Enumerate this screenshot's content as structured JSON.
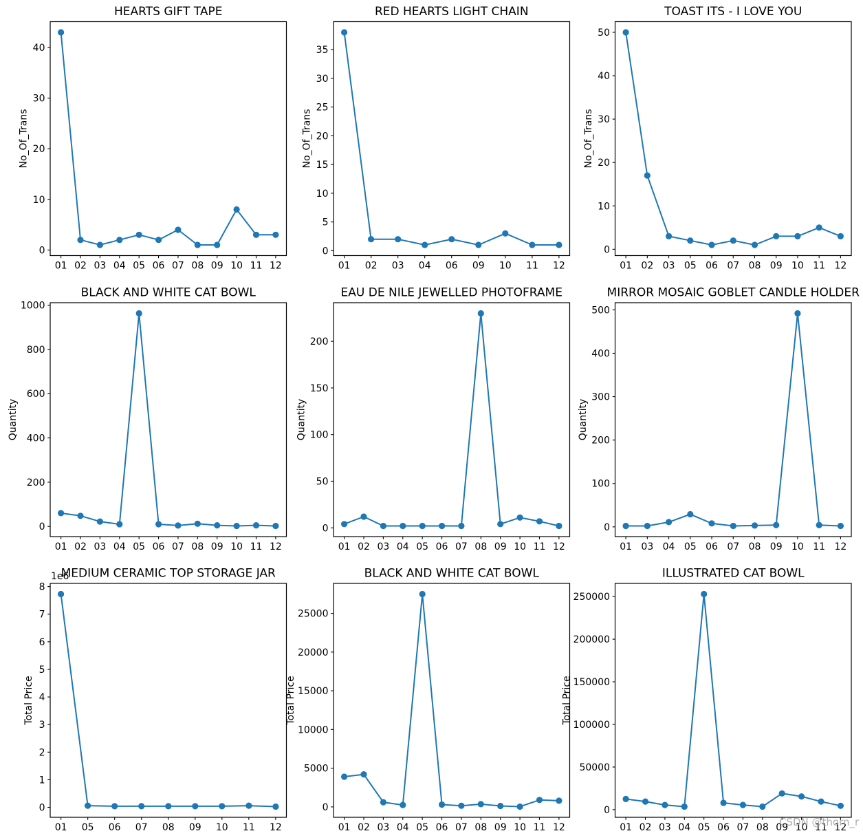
{
  "figure": {
    "background": "#ffffff",
    "line_color": "#1f77b4",
    "axes_color": "#000000",
    "watermark": "CSDN @thorn_r"
  },
  "chart_data": [
    {
      "type": "line",
      "title": "HEARTS GIFT TAPE",
      "xlabel": "",
      "ylabel": "No_Of_Trans",
      "x": [
        "01",
        "02",
        "03",
        "04",
        "05",
        "06",
        "07",
        "08",
        "09",
        "10",
        "11",
        "12"
      ],
      "values": [
        43,
        2,
        1,
        2,
        3,
        2,
        4,
        1,
        1,
        8,
        3,
        3
      ],
      "yticks": [
        0,
        10,
        20,
        30,
        40
      ],
      "ytick_labels": [
        "0",
        "10",
        "20",
        "30",
        "40"
      ],
      "offset_text": "",
      "grid": false,
      "legend": null
    },
    {
      "type": "line",
      "title": "RED HEARTS LIGHT CHAIN",
      "xlabel": "",
      "ylabel": "No_Of_Trans",
      "x": [
        "01",
        "02",
        "03",
        "04",
        "06",
        "09",
        "10",
        "11",
        "12"
      ],
      "values": [
        38,
        2,
        2,
        1,
        2,
        1,
        3,
        1,
        1
      ],
      "yticks": [
        0,
        5,
        10,
        15,
        20,
        25,
        30,
        35
      ],
      "ytick_labels": [
        "0",
        "5",
        "10",
        "15",
        "20",
        "25",
        "30",
        "35"
      ],
      "offset_text": "",
      "grid": false,
      "legend": null
    },
    {
      "type": "line",
      "title": "TOAST ITS - I LOVE YOU",
      "xlabel": "",
      "ylabel": "No_Of_Trans",
      "x": [
        "01",
        "02",
        "03",
        "05",
        "06",
        "07",
        "08",
        "09",
        "10",
        "11",
        "12"
      ],
      "values": [
        50,
        17,
        3,
        2,
        1,
        2,
        1,
        3,
        3,
        5,
        3
      ],
      "yticks": [
        0,
        10,
        20,
        30,
        40,
        50
      ],
      "ytick_labels": [
        "0",
        "10",
        "20",
        "30",
        "40",
        "50"
      ],
      "offset_text": "",
      "grid": false,
      "legend": null
    },
    {
      "type": "line",
      "title": "BLACK AND WHITE CAT BOWL",
      "xlabel": "",
      "ylabel": "Quantity",
      "x": [
        "01",
        "02",
        "03",
        "04",
        "05",
        "06",
        "07",
        "08",
        "09",
        "10",
        "11",
        "12"
      ],
      "values": [
        60,
        48,
        22,
        10,
        963,
        10,
        4,
        12,
        5,
        2,
        5,
        2
      ],
      "yticks": [
        0,
        200,
        400,
        600,
        800,
        1000
      ],
      "ytick_labels": [
        "0",
        "200",
        "400",
        "600",
        "800",
        "1000"
      ],
      "offset_text": "",
      "grid": false,
      "legend": null
    },
    {
      "type": "line",
      "title": "EAU DE NILE JEWELLED PHOTOFRAME",
      "xlabel": "",
      "ylabel": "Quantity",
      "x": [
        "01",
        "02",
        "03",
        "04",
        "05",
        "06",
        "07",
        "08",
        "09",
        "10",
        "11",
        "12"
      ],
      "values": [
        4,
        12,
        2,
        2,
        2,
        2,
        2,
        230,
        4,
        11,
        7,
        2
      ],
      "yticks": [
        0,
        50,
        100,
        150,
        200
      ],
      "ytick_labels": [
        "0",
        "50",
        "100",
        "150",
        "200"
      ],
      "offset_text": "",
      "grid": false,
      "legend": null
    },
    {
      "type": "line",
      "title": "MIRROR MOSAIC GOBLET CANDLE HOLDER",
      "xlabel": "",
      "ylabel": "Quantity",
      "x": [
        "01",
        "03",
        "04",
        "05",
        "06",
        "07",
        "08",
        "09",
        "10",
        "11",
        "12"
      ],
      "values": [
        2,
        2,
        11,
        29,
        8,
        2,
        3,
        4,
        492,
        4,
        2
      ],
      "yticks": [
        0,
        100,
        200,
        300,
        400,
        500
      ],
      "ytick_labels": [
        "0",
        "100",
        "200",
        "300",
        "400",
        "500"
      ],
      "offset_text": "",
      "grid": false,
      "legend": null
    },
    {
      "type": "line",
      "title": "MEDIUM CERAMIC TOP STORAGE JAR",
      "xlabel": "",
      "ylabel": "Total Price",
      "x": [
        "01",
        "05",
        "06",
        "07",
        "08",
        "09",
        "10",
        "11",
        "12"
      ],
      "values": [
        7730000,
        60000,
        40000,
        40000,
        40000,
        40000,
        40000,
        60000,
        25000
      ],
      "yticks": [
        0,
        1000000,
        2000000,
        3000000,
        4000000,
        5000000,
        6000000,
        7000000,
        8000000
      ],
      "ytick_labels": [
        "0",
        "1",
        "2",
        "3",
        "4",
        "5",
        "6",
        "7",
        "8"
      ],
      "offset_text": "1e6",
      "grid": false,
      "legend": null
    },
    {
      "type": "line",
      "title": "BLACK AND WHITE CAT BOWL",
      "xlabel": "",
      "ylabel": "Total Price",
      "x": [
        "01",
        "02",
        "03",
        "04",
        "05",
        "06",
        "07",
        "08",
        "09",
        "10",
        "11",
        "12"
      ],
      "values": [
        3900,
        4200,
        600,
        250,
        27500,
        300,
        150,
        350,
        120,
        30,
        900,
        800
      ],
      "yticks": [
        0,
        5000,
        10000,
        15000,
        20000,
        25000
      ],
      "ytick_labels": [
        "0",
        "5000",
        "10000",
        "15000",
        "20000",
        "25000"
      ],
      "offset_text": "",
      "grid": false,
      "legend": null
    },
    {
      "type": "line",
      "title": "ILLUSTRATED CAT BOWL",
      "xlabel": "",
      "ylabel": "Total Price",
      "x": [
        "01",
        "02",
        "03",
        "04",
        "05",
        "06",
        "07",
        "08",
        "09",
        "10",
        "11",
        "12"
      ],
      "values": [
        12500,
        9500,
        5500,
        3500,
        253000,
        8000,
        5500,
        3500,
        19000,
        15500,
        9500,
        4500
      ],
      "yticks": [
        0,
        50000,
        100000,
        150000,
        200000,
        250000
      ],
      "ytick_labels": [
        "0",
        "50000",
        "100000",
        "150000",
        "200000",
        "250000"
      ],
      "offset_text": "",
      "grid": false,
      "legend": null
    }
  ]
}
